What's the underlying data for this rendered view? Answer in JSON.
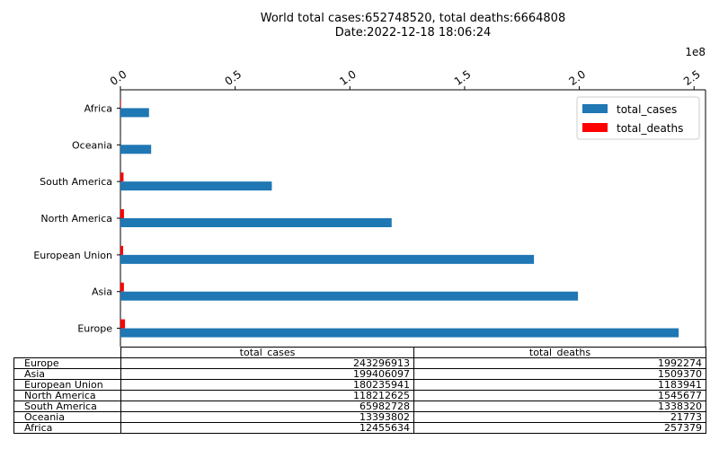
{
  "header": {
    "title_line1": "World total cases:652748520, total deaths:6664808",
    "title_line2": "Date:2022-12-18 18:06:24"
  },
  "chart_data": {
    "type": "bar",
    "orientation": "horizontal",
    "categories": [
      "Europe",
      "Asia",
      "European Union",
      "North America",
      "South America",
      "Oceania",
      "Africa"
    ],
    "series": [
      {
        "name": "total_cases",
        "color": "#1f77b4",
        "values": [
          243296913,
          199406097,
          180235941,
          118212625,
          65982728,
          13393802,
          12455634
        ]
      },
      {
        "name": "total_deaths",
        "color": "#ff0000",
        "values": [
          1992274,
          1509370,
          1183941,
          1545677,
          1338320,
          21773,
          257379
        ]
      }
    ],
    "xaxis": {
      "position": "top",
      "scale_label": "1e8",
      "ticks": [
        0.0,
        0.5,
        1.0,
        1.5,
        2.0,
        2.5
      ],
      "tick_labels": [
        "0.0",
        "0.5",
        "1.0",
        "1.5",
        "2.0",
        "2.5"
      ],
      "multiplier": 100000000,
      "range": [
        0,
        255000000
      ]
    },
    "legend": {
      "placement": "top-right"
    },
    "grid": false
  },
  "table": {
    "columns": [
      "total_cases",
      "total_deaths"
    ],
    "rows": [
      {
        "label": "Europe",
        "total_cases": "243296913",
        "total_deaths": "1992274"
      },
      {
        "label": "Asia",
        "total_cases": "199406097",
        "total_deaths": "1509370"
      },
      {
        "label": "European Union",
        "total_cases": "180235941",
        "total_deaths": "1183941"
      },
      {
        "label": "North America",
        "total_cases": "118212625",
        "total_deaths": "1545677"
      },
      {
        "label": "South America",
        "total_cases": "65982728",
        "total_deaths": "1338320"
      },
      {
        "label": "Oceania",
        "total_cases": "13393802",
        "total_deaths": "21773"
      },
      {
        "label": "Africa",
        "total_cases": "12455634",
        "total_deaths": "257379"
      }
    ]
  }
}
